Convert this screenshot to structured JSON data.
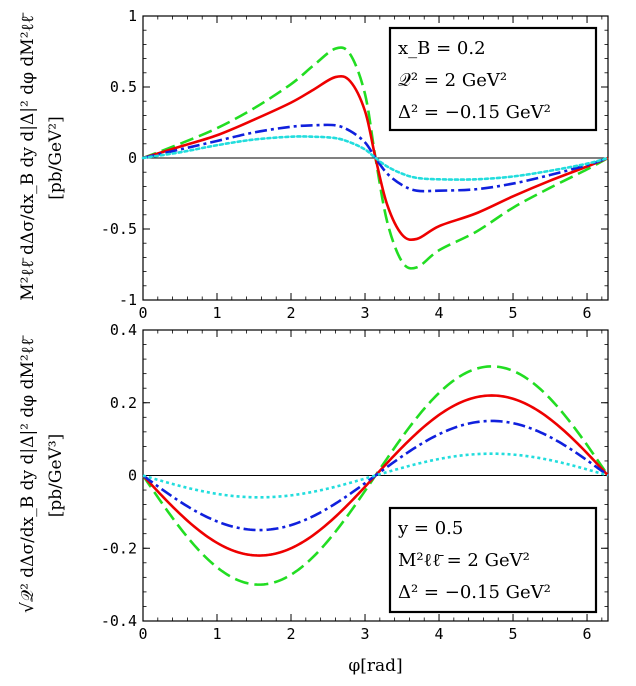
{
  "chart_data": [
    {
      "type": "line",
      "ylabel": "M²ℓℓ̄ dΔσ/dx_B dy d|Δ|² dφ dM²ℓℓ̄",
      "ylabel_unit": "[pb/GeV²]",
      "xlim": [
        0,
        6.2832
      ],
      "ylim": [
        -1,
        1
      ],
      "xticks": [
        "0",
        "1",
        "2",
        "3",
        "4",
        "5",
        "6"
      ],
      "yticks": [
        "-1",
        "-0.5",
        "0",
        "0.5",
        "1"
      ],
      "legend_box": [
        "x_B = 0.2",
        "𝒬² = 2 GeV²",
        "Δ² = −0.15 GeV²"
      ],
      "x": [
        0,
        0.5,
        1.0,
        1.5,
        2.0,
        2.3,
        2.6,
        2.8,
        3.0,
        3.1416,
        3.3,
        3.5,
        3.7,
        4.0,
        4.5,
        5.0,
        5.5,
        6.0,
        6.2832
      ],
      "series": [
        {
          "color": "#22dd22",
          "dash": "dashed",
          "values": [
            0,
            0.1,
            0.21,
            0.35,
            0.52,
            0.65,
            0.77,
            0.73,
            0.45,
            0,
            -0.45,
            -0.73,
            -0.77,
            -0.65,
            -0.52,
            -0.35,
            -0.21,
            -0.08,
            0
          ]
        },
        {
          "color": "#ee0000",
          "dash": "solid",
          "values": [
            0,
            0.08,
            0.16,
            0.27,
            0.39,
            0.48,
            0.57,
            0.54,
            0.33,
            0,
            -0.33,
            -0.54,
            -0.57,
            -0.48,
            -0.39,
            -0.27,
            -0.16,
            -0.06,
            0
          ]
        },
        {
          "color": "#1020dd",
          "dash": "dashdot",
          "values": [
            0,
            0.06,
            0.12,
            0.18,
            0.22,
            0.23,
            0.23,
            0.19,
            0.11,
            0,
            -0.11,
            -0.19,
            -0.23,
            -0.23,
            -0.22,
            -0.18,
            -0.12,
            -0.05,
            0
          ]
        },
        {
          "color": "#22dddd",
          "dash": "dotted",
          "values": [
            0,
            0.04,
            0.09,
            0.13,
            0.15,
            0.15,
            0.14,
            0.11,
            0.06,
            0,
            -0.06,
            -0.11,
            -0.14,
            -0.15,
            -0.15,
            -0.13,
            -0.09,
            -0.04,
            0
          ]
        }
      ]
    },
    {
      "type": "line",
      "ylabel": "√𝒬² dΔσ/dx_B dy d|Δ|² dφ dM²ℓℓ̄",
      "ylabel_unit": "[pb/GeV³]",
      "xlabel": "φ[rad]",
      "xlim": [
        0,
        6.2832
      ],
      "ylim": [
        -0.4,
        0.4
      ],
      "xticks": [
        "0",
        "1",
        "2",
        "3",
        "4",
        "5",
        "6"
      ],
      "yticks": [
        "-0.4",
        "-0.2",
        "0",
        "0.2",
        "0.4"
      ],
      "legend_box": [
        "y = 0.5",
        "M²ℓℓ̄ = 2 GeV²",
        "Δ² = −0.15 GeV²"
      ],
      "x": [
        0,
        0.4,
        0.8,
        1.2,
        1.5708,
        2.0,
        2.4,
        2.8,
        3.1416,
        3.5,
        4.0,
        4.4,
        4.7124,
        5.1,
        5.5,
        5.9,
        6.2832
      ],
      "series": [
        {
          "color": "#22dd22",
          "dash": "dashed",
          "amp": 0.3
        },
        {
          "color": "#ee0000",
          "dash": "solid",
          "amp": 0.22
        },
        {
          "color": "#1020dd",
          "dash": "dashdot",
          "amp": 0.15
        },
        {
          "color": "#22dddd",
          "dash": "dotted",
          "amp": 0.06
        }
      ]
    }
  ]
}
